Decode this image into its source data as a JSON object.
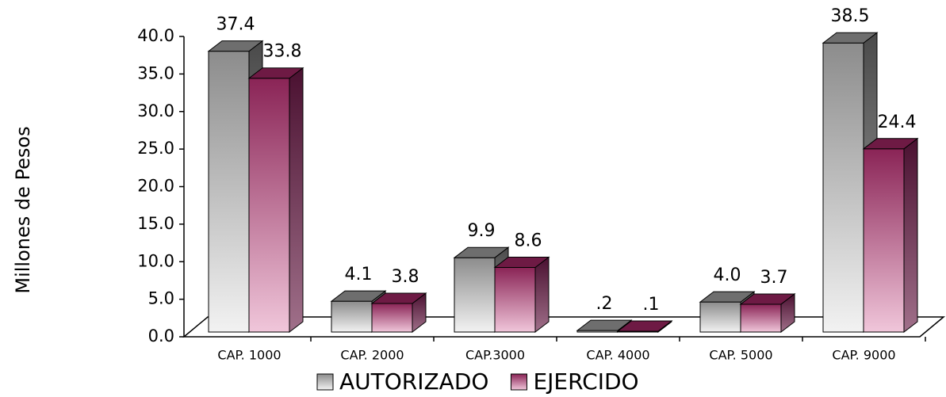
{
  "chart_data": {
    "type": "bar3d",
    "y_label": "Millones de Pesos",
    "categories": [
      "CAP. 1000",
      "CAP. 2000",
      "CAP.3000",
      "CAP. 4000",
      "CAP. 5000",
      "CAP. 9000"
    ],
    "series": [
      {
        "name": "AUTORIZADO",
        "color": "#a0a0a0",
        "values": [
          37.4,
          4.1,
          9.9,
          0.2,
          4.0,
          38.5
        ],
        "value_labels": [
          "37.4",
          "4.1",
          "9.9",
          ".2",
          "4.0",
          "38.5"
        ]
      },
      {
        "name": "EJERCIDO",
        "color": "#9a2f63",
        "values": [
          33.8,
          3.8,
          8.6,
          0.1,
          3.7,
          24.4
        ],
        "value_labels": [
          "33.8",
          "3.8",
          "8.6",
          ".1",
          "3.7",
          "24.4"
        ]
      }
    ],
    "ylim": [
      0,
      40
    ],
    "yticks": [
      {
        "value": 0,
        "label": "0.0"
      },
      {
        "value": 5,
        "label": "5.0"
      },
      {
        "value": 10,
        "label": "10.0"
      },
      {
        "value": 15,
        "label": "15.0"
      },
      {
        "value": 20,
        "label": "20.0"
      },
      {
        "value": 25,
        "label": "25.0"
      },
      {
        "value": 30,
        "label": "30.0"
      },
      {
        "value": 35,
        "label": "35.0"
      },
      {
        "value": 40,
        "label": "40.0"
      }
    ],
    "legend": "bottom"
  }
}
